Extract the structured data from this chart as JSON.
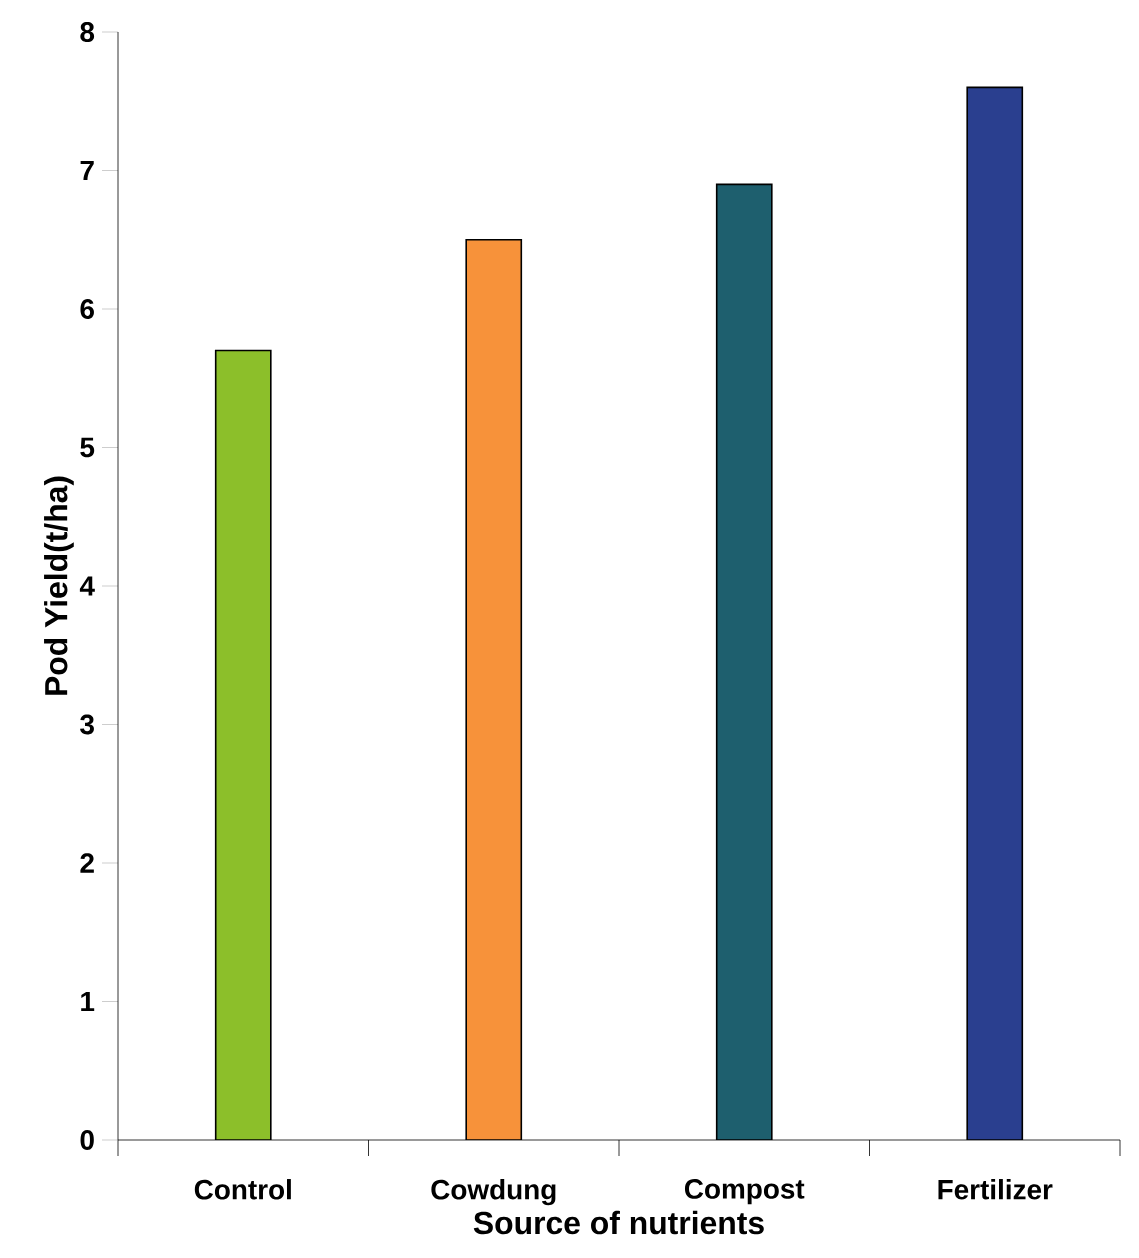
{
  "chart_data": {
    "type": "bar",
    "xlabel": "Source of nutrients",
    "ylabel": "Pod Yield(t/ha)",
    "categories": [
      "Control",
      "Cowdung",
      "Compost",
      "Fertilizer"
    ],
    "values": [
      5.7,
      6.5,
      6.9,
      7.6
    ],
    "colors": [
      "#8cbf2a",
      "#f7923a",
      "#1e5f6e",
      "#2a3f8f"
    ],
    "ylim": [
      0,
      8
    ],
    "yticks": [
      0,
      1,
      2,
      3,
      4,
      5,
      6,
      7,
      8
    ],
    "grid": false
  }
}
